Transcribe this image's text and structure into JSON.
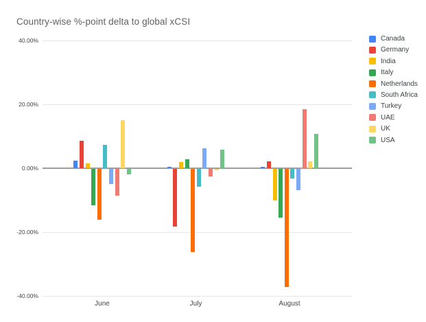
{
  "title": "Country-wise %-point delta to global xCSI",
  "chart_data": {
    "type": "bar",
    "title": "Country-wise %-point delta to global xCSI",
    "categories": [
      "June",
      "July",
      "August"
    ],
    "series": [
      {
        "name": "Canada",
        "color": "#4285F4",
        "values": [
          2.3,
          0.4,
          0.5
        ]
      },
      {
        "name": "Germany",
        "color": "#EA4335",
        "values": [
          8.7,
          -18.0,
          2.1
        ]
      },
      {
        "name": "India",
        "color": "#FBBC04",
        "values": [
          1.4,
          1.9,
          -9.8
        ]
      },
      {
        "name": "Italy",
        "color": "#34A853",
        "values": [
          -11.3,
          2.8,
          -15.3
        ]
      },
      {
        "name": "Netherlands",
        "color": "#FF6D01",
        "values": [
          -15.9,
          -26.0,
          -37.0
        ]
      },
      {
        "name": "South Africa",
        "color": "#46BDC6",
        "values": [
          7.4,
          -5.6,
          -3.0
        ]
      },
      {
        "name": "Turkey",
        "color": "#7BAAF7",
        "values": [
          -4.8,
          6.3,
          -6.6
        ]
      },
      {
        "name": "UAE",
        "color": "#F07B72",
        "values": [
          -8.4,
          -2.3,
          18.5
        ]
      },
      {
        "name": "UK",
        "color": "#FDD663",
        "values": [
          15.1,
          -0.4,
          2.2
        ]
      },
      {
        "name": "USA",
        "color": "#71C287",
        "values": [
          -1.8,
          5.9,
          10.7
        ]
      }
    ],
    "ylim": [
      -40,
      40
    ],
    "yticks": [
      {
        "value": 40,
        "label": "40.00%"
      },
      {
        "value": 20,
        "label": "20.00%"
      },
      {
        "value": 0,
        "label": "0.00%"
      },
      {
        "value": -20,
        "label": "-20.00%"
      },
      {
        "value": -40,
        "label": "-40.00%"
      }
    ],
    "grid": true,
    "legend_position": "right",
    "axis_color": "#9e9e9e",
    "gridline_color": "#e6e6e6"
  }
}
